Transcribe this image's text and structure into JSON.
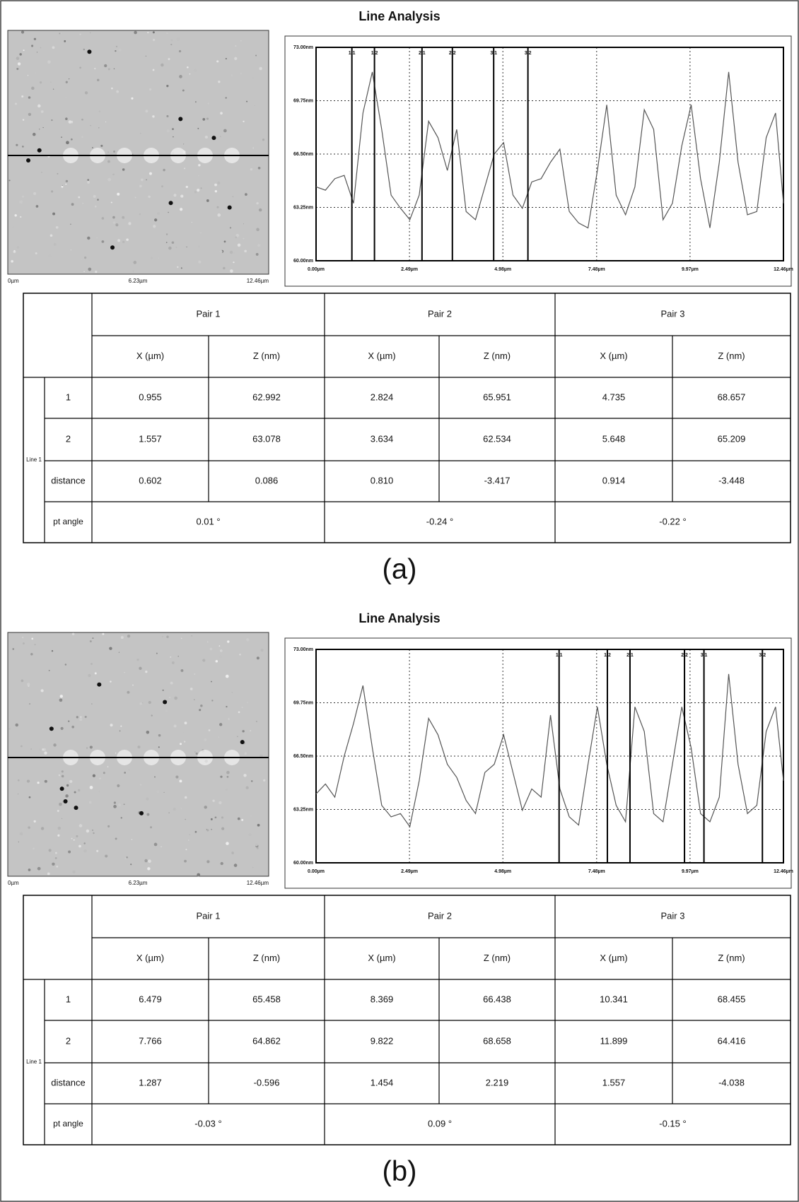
{
  "panels": [
    {
      "label": "(a)",
      "title": "Line Analysis",
      "image": {
        "x_labels": [
          "0µm",
          "6.23µm",
          "12.46µm"
        ]
      },
      "profile": {
        "type": "line",
        "x": [
          0,
          0.25,
          0.5,
          0.75,
          1,
          1.25,
          1.5,
          1.75,
          2,
          2.25,
          2.5,
          2.75,
          3,
          3.25,
          3.5,
          3.75,
          4,
          4.25,
          4.5,
          4.75,
          5,
          5.25,
          5.5,
          5.75,
          6,
          6.25,
          6.5,
          6.75,
          7,
          7.25,
          7.5,
          7.75,
          8,
          8.25,
          8.5,
          8.75,
          9,
          9.25,
          9.5,
          9.75,
          10,
          10.25,
          10.5,
          10.75,
          11,
          11.25,
          11.5,
          11.75,
          12,
          12.25,
          12.46
        ],
        "values": [
          64.5,
          64.3,
          65.0,
          65.2,
          63.5,
          69.0,
          71.5,
          68.0,
          64.0,
          63.2,
          62.5,
          64.0,
          68.5,
          67.5,
          65.5,
          68.0,
          63.0,
          62.5,
          64.5,
          66.5,
          67.2,
          64.0,
          63.2,
          64.8,
          65.0,
          66.0,
          66.8,
          63.0,
          62.3,
          62.0,
          65.5,
          69.5,
          64.0,
          62.8,
          64.5,
          69.2,
          68.0,
          62.5,
          63.5,
          67.0,
          69.5,
          65.0,
          62.0,
          66.0,
          71.5,
          66.0,
          62.8,
          63.0,
          67.5,
          69.0,
          63.5
        ],
        "xlim": [
          0,
          12.46
        ],
        "ylim": [
          60,
          73
        ],
        "xticks": [
          {
            "value": 0,
            "label": "0.00µm"
          },
          {
            "value": 2.49,
            "label": "2.49µm"
          },
          {
            "value": 4.98,
            "label": "4.98µm"
          },
          {
            "value": 7.48,
            "label": "7.48µm"
          },
          {
            "value": 9.97,
            "label": "9.97µm"
          },
          {
            "value": 12.46,
            "label": "12.46µm"
          }
        ],
        "yticks": [
          {
            "value": 60,
            "label": "60.00nm"
          },
          {
            "value": 63.25,
            "label": "63.25nm"
          },
          {
            "value": 66.5,
            "label": "66.50nm"
          },
          {
            "value": 69.75,
            "label": "69.75nm"
          },
          {
            "value": 73,
            "label": "73.00nm"
          }
        ],
        "cursor_labels": [
          "1.1",
          "1.2",
          "2.1",
          "2.2",
          "3.1",
          "3.2"
        ]
      },
      "table": {
        "pairs": [
          "Pair 1",
          "Pair 2",
          "Pair 3"
        ],
        "columns": [
          "X (µm)",
          "Z (nm)"
        ],
        "group": "Line 1",
        "rows": [
          {
            "label": "1",
            "cells": [
              "0.955",
              "62.992",
              "2.824",
              "65.951",
              "4.735",
              "68.657"
            ]
          },
          {
            "label": "2",
            "cells": [
              "1.557",
              "63.078",
              "3.634",
              "62.534",
              "5.648",
              "65.209"
            ]
          },
          {
            "label": "distance",
            "cells": [
              "0.602",
              "0.086",
              "0.810",
              "-3.417",
              "0.914",
              "-3.448"
            ]
          }
        ],
        "angle_label": "pt angle",
        "angles": [
          "0.01 °",
          "-0.24 °",
          "-0.22 °"
        ]
      }
    },
    {
      "label": "(b)",
      "title": "Line Analysis",
      "image": {
        "x_labels": [
          "0µm",
          "6.23µm",
          "12.46µm"
        ]
      },
      "profile": {
        "type": "line",
        "x": [
          0,
          0.25,
          0.5,
          0.75,
          1,
          1.25,
          1.5,
          1.75,
          2,
          2.25,
          2.5,
          2.75,
          3,
          3.25,
          3.5,
          3.75,
          4,
          4.25,
          4.5,
          4.75,
          5,
          5.25,
          5.5,
          5.75,
          6,
          6.25,
          6.5,
          6.75,
          7,
          7.25,
          7.5,
          7.75,
          8,
          8.25,
          8.5,
          8.75,
          9,
          9.25,
          9.5,
          9.75,
          10,
          10.25,
          10.5,
          10.75,
          11,
          11.25,
          11.5,
          11.75,
          12,
          12.25,
          12.46
        ],
        "values": [
          64.2,
          64.8,
          64.0,
          66.5,
          68.5,
          70.8,
          67.0,
          63.5,
          62.8,
          63.0,
          62.2,
          65.0,
          68.8,
          67.8,
          66.0,
          65.2,
          63.8,
          63.0,
          65.5,
          66.0,
          67.8,
          65.5,
          63.2,
          64.5,
          64.0,
          69.0,
          64.5,
          62.8,
          62.3,
          66.0,
          69.5,
          66.0,
          63.5,
          62.5,
          69.5,
          68.0,
          63.0,
          62.5,
          66.0,
          69.5,
          67.0,
          63.0,
          62.5,
          64.0,
          71.5,
          66.0,
          63.0,
          63.5,
          68.0,
          69.5,
          65.0
        ],
        "xlim": [
          0,
          12.46
        ],
        "ylim": [
          60,
          73
        ],
        "xticks": [
          {
            "value": 0,
            "label": "0.00µm"
          },
          {
            "value": 2.49,
            "label": "2.49µm"
          },
          {
            "value": 4.98,
            "label": "4.98µm"
          },
          {
            "value": 7.48,
            "label": "7.48µm"
          },
          {
            "value": 9.97,
            "label": "9.97µm"
          },
          {
            "value": 12.46,
            "label": "12.46µm"
          }
        ],
        "yticks": [
          {
            "value": 60,
            "label": "60.00nm"
          },
          {
            "value": 63.25,
            "label": "63.25nm"
          },
          {
            "value": 66.5,
            "label": "66.50nm"
          },
          {
            "value": 69.75,
            "label": "69.75nm"
          },
          {
            "value": 73,
            "label": "73.00nm"
          }
        ],
        "cursor_labels": [
          "1.1",
          "1.2",
          "2.1",
          "2.2",
          "3.1",
          "3.2"
        ]
      },
      "table": {
        "pairs": [
          "Pair 1",
          "Pair 2",
          "Pair 3"
        ],
        "columns": [
          "X (µm)",
          "Z (nm)"
        ],
        "group": "Line 1",
        "rows": [
          {
            "label": "1",
            "cells": [
              "6.479",
              "65.458",
              "8.369",
              "66.438",
              "10.341",
              "68.455"
            ]
          },
          {
            "label": "2",
            "cells": [
              "7.766",
              "64.862",
              "9.822",
              "68.658",
              "11.899",
              "64.416"
            ]
          },
          {
            "label": "distance",
            "cells": [
              "1.287",
              "-0.596",
              "1.454",
              "2.219",
              "1.557",
              "-4.038"
            ]
          }
        ],
        "angle_label": "pt angle",
        "angles": [
          "-0.03 °",
          "0.09 °",
          "-0.15 °"
        ]
      }
    }
  ]
}
